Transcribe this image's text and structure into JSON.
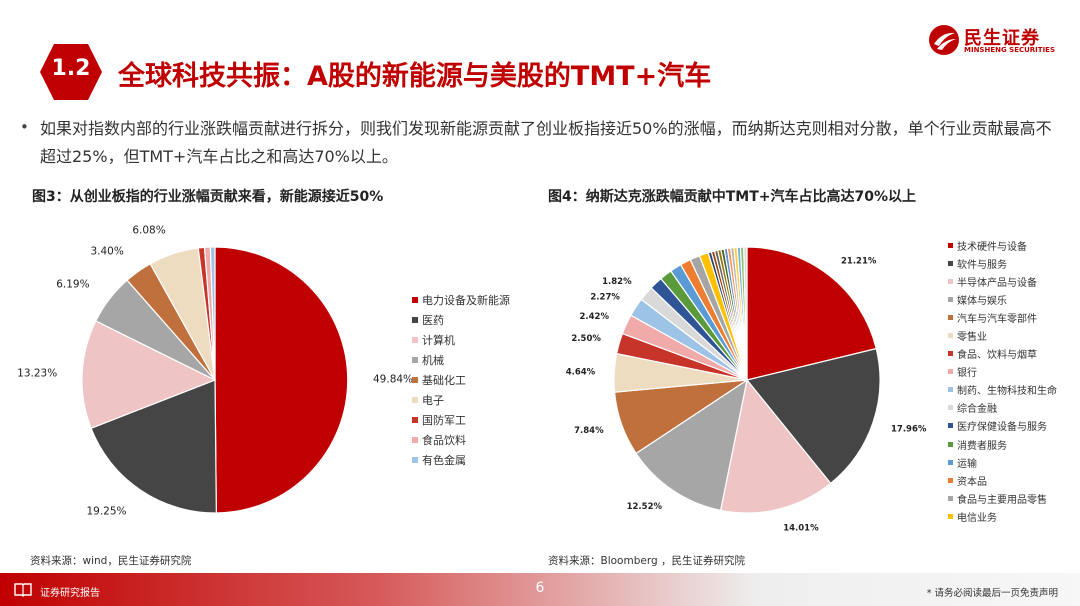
{
  "brand": {
    "name_cn": "民生证券",
    "name_en": "MINSHENG SECURITIES",
    "color": "#c00000"
  },
  "section": {
    "number": "1.2",
    "title": "全球科技共振：A股的新能源与美股的TMT+汽车"
  },
  "bullet": "如果对指数内部的行业涨跌幅贡献进行拆分，则我们发现新能源贡献了创业板指接近50%的涨幅，而纳斯达克则相对分散，单个行业贡献最高不超过25%，但TMT+汽车占比之和高达70%以上。",
  "figures": {
    "fig3_title": "图3：从创业板指的行业涨幅贡献来看，新能源接近50%",
    "fig4_title": "图4：纳斯达克涨跌幅贡献中TMT+汽车占比高达70%以上",
    "fig3_source": "资料来源：wind，民生证券研究院",
    "fig4_source": "资料来源：Bloomberg ，民生证券研究院"
  },
  "chart_data": [
    {
      "type": "pie",
      "categories": [
        "电力设备及新能源",
        "医药",
        "计算机",
        "机械",
        "基础化工",
        "电子",
        "国防军工",
        "食品饮料",
        "有色金属"
      ],
      "values": [
        49.84,
        19.25,
        13.23,
        6.19,
        3.4,
        6.08,
        0.75,
        0.7,
        0.56
      ],
      "data_labels": [
        "49.84%",
        "19.25%",
        "13.23%",
        "6.19%",
        "3.40%",
        "6.08%",
        "",
        "",
        ""
      ],
      "colors": [
        "#c00000",
        "#454545",
        "#efc4c4",
        "#a6a6a6",
        "#c0703c",
        "#eddcc0",
        "#c6342a",
        "#f0aaaa",
        "#9dc3e6"
      ],
      "legend_position": "right"
    },
    {
      "type": "pie",
      "categories": [
        "技术硬件与设备",
        "软件与服务",
        "半导体产品与设备",
        "媒体与娱乐",
        "汽车与汽车零部件",
        "零售业",
        "食品、饮料与烟草",
        "银行",
        "制药、生物科技和生命",
        "综合金融",
        "医疗保健设备与服务",
        "消费者服务",
        "运输",
        "资本品",
        "食品与主要用品零售",
        "电信业务"
      ],
      "values": [
        21.21,
        17.96,
        14.01,
        12.52,
        7.84,
        4.64,
        2.5,
        2.42,
        2.27,
        1.82,
        1.6,
        1.5,
        1.4,
        1.3,
        1.2,
        1.1
      ],
      "data_labels": [
        "21.21%",
        "17.96%",
        "14.01%",
        "12.52%",
        "7.84%",
        "4.64%",
        "2.50%",
        "2.42%",
        "2.27%",
        "1.82%",
        "",
        "",
        "",
        "",
        "",
        ""
      ],
      "colors": [
        "#c00000",
        "#454545",
        "#efc4c4",
        "#a6a6a6",
        "#c0703c",
        "#eddcc0",
        "#c6342a",
        "#f0aaaa",
        "#9dc3e6",
        "#d9d9d9",
        "#2f5597",
        "#5a9a3a",
        "#5b9bd5",
        "#ed7d31",
        "#a5a5a5",
        "#ffc000"
      ],
      "extra_slice_colors": [
        "#264478",
        "#9e480e",
        "#636363",
        "#997300",
        "#43682b",
        "#698ed0",
        "#f1975a",
        "#b7b7b7",
        "#ffcd33",
        "#7cafdd",
        "#8cc168",
        "#dbdbdb"
      ],
      "legend_position": "right"
    }
  ],
  "footer": {
    "left": "证券研究报告",
    "page": "6",
    "disclaimer": "* 请务必阅读最后一页免责声明"
  }
}
